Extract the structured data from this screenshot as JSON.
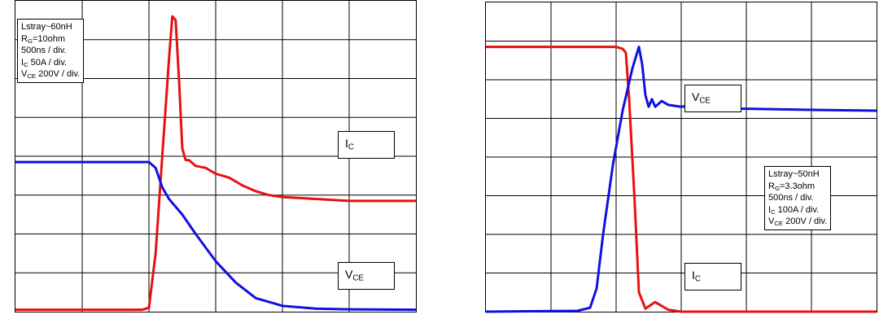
{
  "charts": [
    {
      "info": {
        "lstray": "Lstray~60nH",
        "rg_main": "R",
        "rg_sub": "G",
        "rg_value": "=10ohm",
        "time_div": "500ns / div.",
        "ic_main": "I",
        "ic_sub": "C",
        "ic_value": " 50A / div.",
        "vce_main": "V",
        "vce_sub": "CE",
        "vce_value": " 200V / div."
      },
      "labels": {
        "ic_main": "I",
        "ic_sub": "C",
        "vce_main": "V",
        "vce_sub": "CE"
      }
    },
    {
      "info": {
        "lstray": "Lstray~50nH",
        "rg_main": "R",
        "rg_sub": "G",
        "rg_value": "=3.3ohm",
        "time_div": "500ns / div.",
        "ic_main": "I",
        "ic_sub": "C",
        "ic_value": " 100A / div.",
        "vce_main": "V",
        "vce_sub": "CE",
        "vce_value": " 200V / div."
      },
      "labels": {
        "ic_main": "I",
        "ic_sub": "C",
        "vce_main": "V",
        "vce_sub": "CE"
      }
    }
  ],
  "colors": {
    "ic": "#e81010",
    "vce": "#1010e0",
    "grid": "#000000"
  },
  "chart_data": [
    {
      "type": "line",
      "grid": true,
      "x_divisions": 6,
      "y_divisions": 8,
      "xlim": [
        0,
        6
      ],
      "ylim": [
        0,
        8
      ],
      "series": [
        {
          "name": "I_C",
          "color": "#e81010",
          "x": [
            0,
            1.9,
            2.0,
            2.1,
            2.2,
            2.3,
            2.35,
            2.4,
            2.45,
            2.5,
            2.55,
            2.6,
            2.7,
            2.85,
            3.0,
            3.2,
            3.4,
            3.6,
            3.8,
            4.0,
            4.5,
            5.0,
            5.5,
            6.0
          ],
          "y": [
            0.05,
            0.05,
            0.1,
            1.5,
            4.0,
            6.5,
            7.6,
            7.5,
            6.0,
            4.2,
            3.9,
            3.9,
            3.75,
            3.7,
            3.55,
            3.45,
            3.25,
            3.1,
            3.0,
            2.95,
            2.9,
            2.85,
            2.85,
            2.85
          ]
        },
        {
          "name": "V_CE",
          "color": "#1010e0",
          "x": [
            0,
            1.5,
            2.0,
            2.1,
            2.2,
            2.3,
            2.5,
            2.7,
            3.0,
            3.3,
            3.6,
            4.0,
            4.5,
            5.0,
            6.0
          ],
          "y": [
            3.85,
            3.85,
            3.85,
            3.7,
            3.2,
            2.9,
            2.5,
            2.0,
            1.3,
            0.75,
            0.35,
            0.15,
            0.08,
            0.06,
            0.05
          ]
        }
      ]
    },
    {
      "type": "line",
      "grid": true,
      "x_divisions": 6,
      "y_divisions": 8,
      "xlim": [
        0,
        6
      ],
      "ylim": [
        0,
        8
      ],
      "series": [
        {
          "name": "I_C",
          "color": "#e81010",
          "x": [
            0,
            2.0,
            2.1,
            2.15,
            2.2,
            2.28,
            2.35,
            2.45,
            2.6,
            2.8,
            3.0,
            6.0
          ],
          "y": [
            6.85,
            6.85,
            6.8,
            6.7,
            5.5,
            3.0,
            0.5,
            0.08,
            0.25,
            0.05,
            0.0,
            0.0
          ]
        },
        {
          "name": "V_CE",
          "color": "#1010e0",
          "x": [
            0,
            1.4,
            1.6,
            1.7,
            1.8,
            1.95,
            2.1,
            2.25,
            2.35,
            2.4,
            2.45,
            2.5,
            2.55,
            2.6,
            2.7,
            2.8,
            3.0,
            3.2,
            3.5,
            4.0,
            5.0,
            6.0
          ],
          "y": [
            0.0,
            0.02,
            0.1,
            0.6,
            2.0,
            3.8,
            5.2,
            6.3,
            6.85,
            6.4,
            5.6,
            5.3,
            5.5,
            5.3,
            5.45,
            5.35,
            5.3,
            5.35,
            5.25,
            5.25,
            5.22,
            5.2
          ]
        }
      ]
    }
  ]
}
